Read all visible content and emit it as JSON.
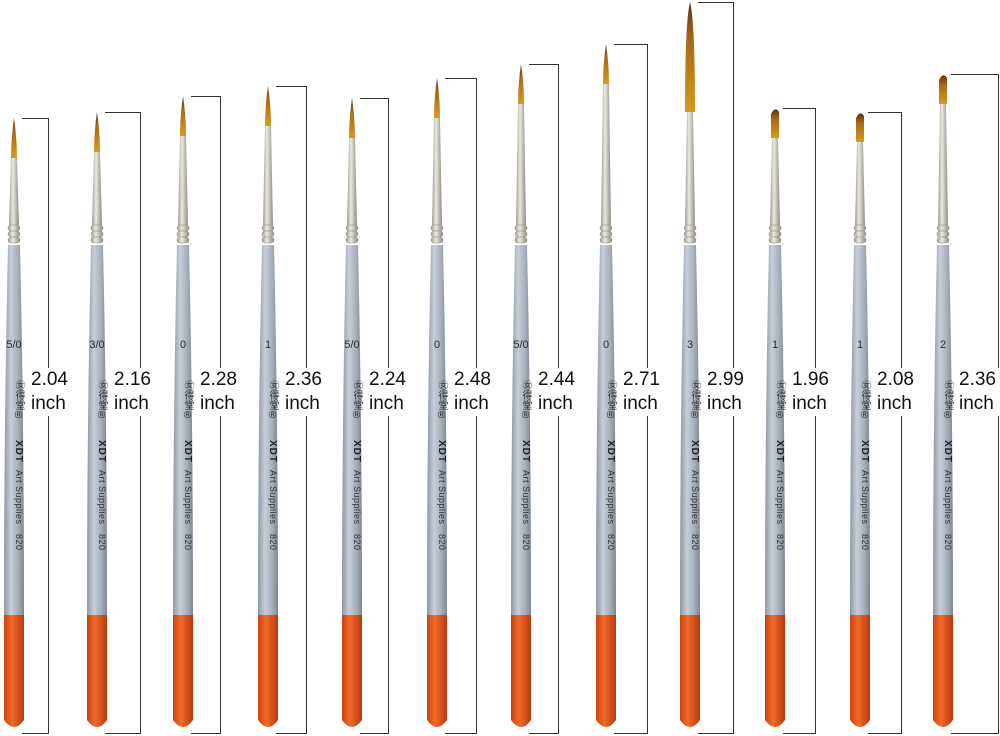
{
  "brushes": [
    {
      "size": "5/0",
      "length": "2.04",
      "unit": "inch",
      "tip": "round"
    },
    {
      "size": "3/0",
      "length": "2.16",
      "unit": "inch",
      "tip": "round"
    },
    {
      "size": "0",
      "length": "2.28",
      "unit": "inch",
      "tip": "round"
    },
    {
      "size": "1",
      "length": "2.36",
      "unit": "inch",
      "tip": "round"
    },
    {
      "size": "5/0",
      "length": "2.24",
      "unit": "inch",
      "tip": "round"
    },
    {
      "size": "0",
      "length": "2.48",
      "unit": "inch",
      "tip": "round"
    },
    {
      "size": "5/0",
      "length": "2.44",
      "unit": "inch",
      "tip": "round"
    },
    {
      "size": "0",
      "length": "2.71",
      "unit": "inch",
      "tip": "round"
    },
    {
      "size": "3",
      "length": "2.99",
      "unit": "inch",
      "tip": "round"
    },
    {
      "size": "1",
      "length": "1.96",
      "unit": "inch",
      "tip": "flat"
    },
    {
      "size": "1",
      "length": "2.08",
      "unit": "inch",
      "tip": "flat"
    },
    {
      "size": "2",
      "length": "2.36",
      "unit": "inch",
      "tip": "flat"
    }
  ],
  "handle_brand_cjk": "㊛得堂®",
  "handle_brand": "XDT",
  "handle_line": "Art Supplies",
  "handle_model": "820",
  "colors": {
    "handle": "#a8b0bc",
    "handle_end": "#e0561c",
    "ferrule": "#c9c6be",
    "bristle": "#d79a1e",
    "bristle_tip": "#5a3410"
  }
}
